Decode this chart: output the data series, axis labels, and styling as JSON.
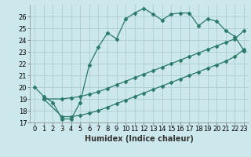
{
  "background_color": "#cce8ec",
  "grid_color": "#aacdd4",
  "line_color": "#2a7a6a",
  "xlabel": "Humidex (Indice chaleur)",
  "ylim": [
    17,
    27
  ],
  "xlim": [
    -0.5,
    23.5
  ],
  "yticks": [
    17,
    18,
    19,
    20,
    21,
    22,
    23,
    24,
    25,
    26
  ],
  "xticks": [
    0,
    1,
    2,
    3,
    4,
    5,
    6,
    7,
    8,
    9,
    10,
    11,
    12,
    13,
    14,
    15,
    16,
    17,
    18,
    19,
    20,
    21,
    22,
    23
  ],
  "series1_x": [
    0,
    1,
    2,
    3,
    4,
    5,
    6,
    7,
    8,
    9,
    10,
    11,
    12,
    13,
    14,
    15,
    16,
    17,
    18,
    19,
    20,
    21,
    22,
    23
  ],
  "series1_y": [
    20.0,
    19.2,
    18.7,
    17.3,
    17.3,
    18.7,
    21.9,
    23.4,
    24.6,
    24.1,
    25.8,
    26.3,
    26.7,
    26.2,
    25.7,
    26.2,
    26.3,
    26.3,
    25.2,
    25.8,
    25.6,
    24.8,
    24.3,
    23.1
  ],
  "series2_x": [
    1,
    3,
    4,
    5,
    6,
    7,
    8,
    9,
    10,
    11,
    12,
    13,
    14,
    15,
    16,
    17,
    18,
    19,
    20,
    21,
    22,
    23
  ],
  "series2_y": [
    19.0,
    19.0,
    19.1,
    19.2,
    19.4,
    19.6,
    19.9,
    20.2,
    20.5,
    20.8,
    21.1,
    21.4,
    21.7,
    22.0,
    22.3,
    22.6,
    22.9,
    23.2,
    23.5,
    23.8,
    24.1,
    24.8
  ],
  "series3_x": [
    1,
    3,
    4,
    5,
    6,
    7,
    8,
    9,
    10,
    11,
    12,
    13,
    14,
    15,
    16,
    17,
    18,
    19,
    20,
    21,
    22,
    23
  ],
  "series3_y": [
    19.0,
    17.5,
    17.5,
    17.6,
    17.8,
    18.0,
    18.3,
    18.6,
    18.9,
    19.2,
    19.5,
    19.8,
    20.1,
    20.4,
    20.7,
    21.0,
    21.3,
    21.6,
    21.9,
    22.2,
    22.6,
    23.2
  ],
  "label_fontsize": 7,
  "tick_fontsize": 6
}
